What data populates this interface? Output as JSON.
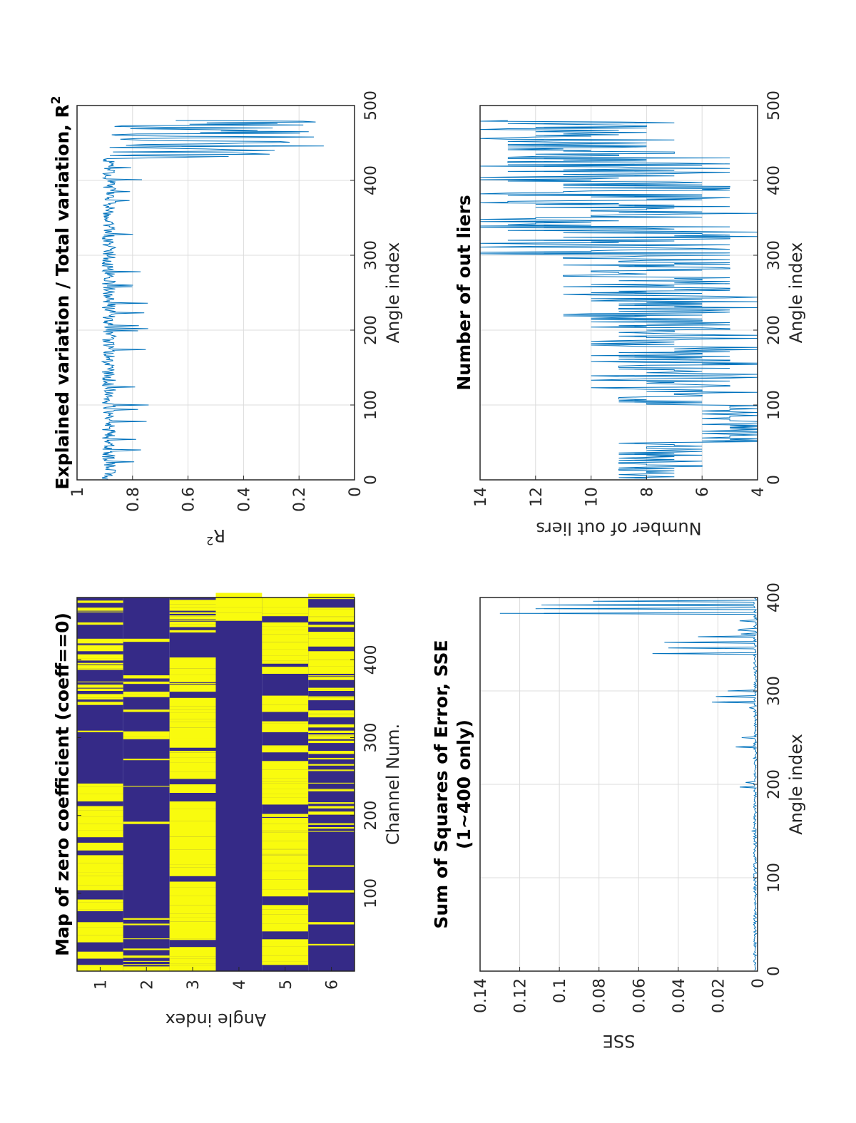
{
  "chart_data": [
    {
      "id": "zero_coeff_map",
      "type": "heatmap",
      "title": "Map of zero coefficient (coeff==0)",
      "xlabel": "Channel Num.",
      "ylabel": "Angle index",
      "x_ticks": [
        "1",
        "2",
        "3",
        "4",
        "5",
        "6"
      ],
      "y_ticks": [
        "100",
        "200",
        "300",
        "400"
      ],
      "ylim": [
        0,
        480
      ],
      "colors": {
        "zero": "#f9fb0e",
        "nonzero": "#352a87"
      },
      "channels": [
        {
          "channel": 1,
          "zero_fraction": 0.45,
          "note": "mixed stripes, mostly zero 1-240, sparse 240-340, mixed 340-480"
        },
        {
          "channel": 2,
          "zero_fraction": 0.12,
          "note": "mostly nonzero; dense stripes 1-60 and 350-380"
        },
        {
          "channel": 3,
          "zero_fraction": 0.7,
          "note": "mostly zero 1-400, nonzero 400-440, mixed 440-480"
        },
        {
          "channel": 4,
          "zero_fraction": 0.1,
          "note": "nonzero 1-450, zero block 450-480"
        },
        {
          "channel": 5,
          "zero_fraction": 0.75,
          "note": "mostly zero throughout"
        },
        {
          "channel": 6,
          "zero_fraction": 0.35,
          "note": "nonzero 1-100, mixed 100-300, zero-heavy 290-480"
        }
      ]
    },
    {
      "id": "r_squared",
      "type": "line",
      "title": "Explained variation / Total variation, R",
      "title_superscript": "2",
      "xlabel": "Angle index",
      "ylabel": "R",
      "ylabel_superscript": "2",
      "x_ticks": [
        "0",
        "100",
        "200",
        "300",
        "400",
        "500"
      ],
      "y_ticks": [
        "0",
        "0.2",
        "0.4",
        "0.6",
        "0.8",
        "1"
      ],
      "xlim": [
        0,
        500
      ],
      "ylim": [
        0,
        1
      ],
      "grid": true,
      "color": "#0072bd",
      "segments": [
        {
          "x_range": [
            1,
            430
          ],
          "typical": 0.89,
          "min": 0.73,
          "max": 0.92
        },
        {
          "x_range": [
            430,
            480
          ],
          "typical": 0.45,
          "min": 0.07,
          "max": 0.9
        }
      ]
    },
    {
      "id": "sse",
      "type": "line",
      "title_line1": "Sum of Squares of Error, SSE",
      "title_line2": "(1~400 only)",
      "xlabel": "Angle index",
      "ylabel": "SSE",
      "x_ticks": [
        "0",
        "100",
        "200",
        "300",
        "400"
      ],
      "y_ticks": [
        "0",
        "0.02",
        "0.04",
        "0.06",
        "0.08",
        "0.1",
        "0.12",
        "0.14"
      ],
      "xlim": [
        0,
        400
      ],
      "ylim": [
        0,
        0.14
      ],
      "grid": true,
      "color": "#0072bd",
      "peaks": [
        {
          "x": 50,
          "y": 0.002
        },
        {
          "x": 100,
          "y": 0.002
        },
        {
          "x": 150,
          "y": 0.003
        },
        {
          "x": 197,
          "y": 0.009
        },
        {
          "x": 202,
          "y": 0.006
        },
        {
          "x": 240,
          "y": 0.011
        },
        {
          "x": 250,
          "y": 0.008
        },
        {
          "x": 288,
          "y": 0.023
        },
        {
          "x": 294,
          "y": 0.021
        },
        {
          "x": 300,
          "y": 0.015
        },
        {
          "x": 340,
          "y": 0.053
        },
        {
          "x": 346,
          "y": 0.045
        },
        {
          "x": 352,
          "y": 0.047
        },
        {
          "x": 358,
          "y": 0.03
        },
        {
          "x": 365,
          "y": 0.01
        },
        {
          "x": 383,
          "y": 0.13
        },
        {
          "x": 388,
          "y": 0.112
        },
        {
          "x": 392,
          "y": 0.109
        },
        {
          "x": 396,
          "y": 0.083
        }
      ]
    },
    {
      "id": "outliers",
      "type": "line",
      "title": "Number of out liers",
      "xlabel": "Angle index",
      "ylabel": "Number of out liers",
      "x_ticks": [
        "0",
        "100",
        "200",
        "300",
        "400",
        "500"
      ],
      "y_ticks": [
        "4",
        "6",
        "8",
        "10",
        "12",
        "14"
      ],
      "xlim": [
        0,
        500
      ],
      "ylim": [
        4,
        14
      ],
      "grid": true,
      "color": "#0072bd",
      "segments": [
        {
          "x_range": [
            1,
            50
          ],
          "min": 6,
          "max": 9
        },
        {
          "x_range": [
            50,
            100
          ],
          "min": 4,
          "max": 6
        },
        {
          "x_range": [
            100,
            200
          ],
          "min": 4,
          "max": 10
        },
        {
          "x_range": [
            200,
            300
          ],
          "min": 4,
          "max": 11
        },
        {
          "x_range": [
            300,
            430
          ],
          "min": 4,
          "max": 14
        },
        {
          "x_range": [
            430,
            480
          ],
          "min": 7,
          "max": 14
        }
      ]
    }
  ]
}
